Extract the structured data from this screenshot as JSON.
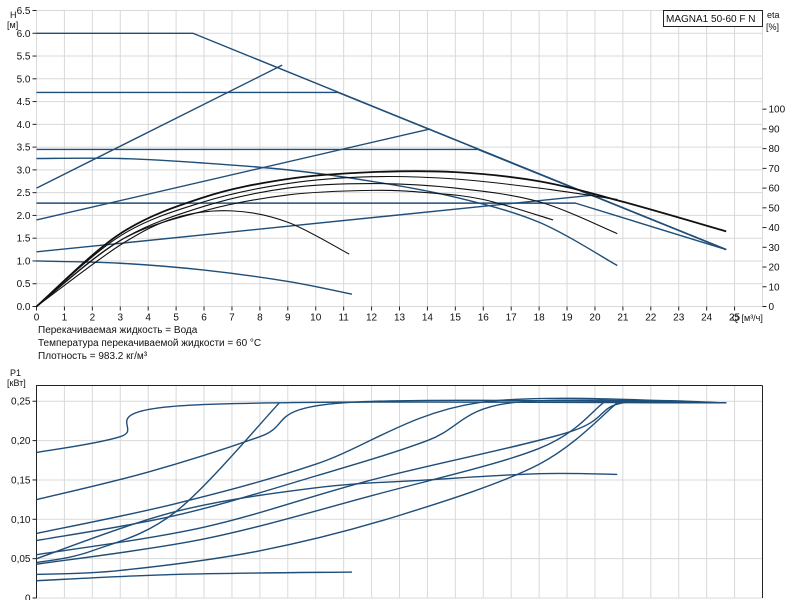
{
  "chart_data": [
    {
      "type": "line",
      "model_label": "MAGNA1 50-60 F N",
      "ylabel_left": "H",
      "yunit_left": "[м]",
      "ylabel_right": "eta",
      "yunit_right": "[%]",
      "xlabel": "Q [м³/ч]",
      "xlim": [
        0,
        26
      ],
      "ylim": [
        0,
        6.5
      ],
      "ylim_right": [
        0,
        100
      ],
      "x_ticks": [
        0,
        1,
        2,
        3,
        4,
        5,
        6,
        7,
        8,
        9,
        10,
        11,
        12,
        13,
        14,
        15,
        16,
        17,
        18,
        19,
        20,
        21,
        22,
        23,
        24,
        25
      ],
      "y_ticks": [
        "0.0",
        "0.5",
        "1.0",
        "1.5",
        "2.0",
        "2.5",
        "3.0",
        "3.5",
        "4.0",
        "4.5",
        "5.0",
        "5.5",
        "6.0",
        "6.5"
      ],
      "y_ticks_right": [
        "0",
        "10",
        "20",
        "30",
        "40",
        "50",
        "60",
        "70",
        "80",
        "90",
        "100"
      ],
      "grid": true,
      "info_lines": [
        "Перекачиваемая жидкость = Вода",
        "Температура перекачиваемой жидкости = 60 °C",
        "Плотность = 983.2 кг/м³"
      ],
      "series": [
        {
          "values": [
            [
              0,
              6.0
            ],
            [
              5.6,
              6.0
            ],
            [
              24.7,
              1.25
            ]
          ]
        },
        {
          "values": [
            [
              0,
              4.7
            ],
            [
              10.8,
              4.7
            ],
            [
              24.7,
              1.25
            ]
          ]
        },
        {
          "values": [
            [
              0,
              3.45
            ],
            [
              15.8,
              3.45
            ],
            [
              24.7,
              1.25
            ]
          ]
        },
        {
          "values": [
            [
              0,
              2.27
            ],
            [
              19.3,
              2.27
            ],
            [
              24.7,
              1.25
            ]
          ]
        },
        {
          "values": [
            [
              0,
              2.6
            ],
            [
              8.8,
              5.3
            ]
          ]
        },
        {
          "values": [
            [
              0,
              1.9
            ],
            [
              14.1,
              3.9
            ]
          ]
        },
        {
          "values": [
            [
              0,
              1.2
            ],
            [
              20.0,
              2.45
            ]
          ]
        },
        {
          "values": [
            [
              0,
              3.25
            ],
            [
              3,
              3.25
            ],
            [
              6,
              3.15
            ],
            [
              9,
              3.0
            ],
            [
              12,
              2.75
            ],
            [
              15,
              2.4
            ],
            [
              18,
              1.85
            ],
            [
              20.8,
              0.9
            ]
          ]
        },
        {
          "values": [
            [
              0,
              1.0
            ],
            [
              3,
              0.95
            ],
            [
              6,
              0.8
            ],
            [
              9,
              0.55
            ],
            [
              11.3,
              0.27
            ]
          ]
        },
        {
          "values": [
            [
              0,
              0
            ],
            [
              3,
              1.6
            ],
            [
              6,
              2.4
            ],
            [
              9,
              2.8
            ],
            [
              12,
              2.95
            ],
            [
              15,
              2.95
            ],
            [
              18,
              2.75
            ],
            [
              21,
              2.3
            ],
            [
              24.7,
              1.65
            ]
          ]
        },
        {
          "values": [
            [
              0,
              0
            ],
            [
              3,
              1.55
            ],
            [
              6,
              2.3
            ],
            [
              9,
              2.7
            ],
            [
              12,
              2.85
            ],
            [
              15,
              2.8
            ],
            [
              18,
              2.6
            ],
            [
              20.8,
              2.35
            ]
          ]
        },
        {
          "values": [
            [
              0,
              0
            ],
            [
              3,
              1.45
            ],
            [
              6,
              2.2
            ],
            [
              9,
              2.6
            ],
            [
              12,
              2.7
            ],
            [
              15,
              2.6
            ],
            [
              18,
              2.3
            ],
            [
              20.8,
              1.6
            ]
          ]
        },
        {
          "values": [
            [
              0,
              0
            ],
            [
              3,
              1.45
            ],
            [
              6,
              2.1
            ],
            [
              9,
              2.45
            ],
            [
              12,
              2.55
            ],
            [
              14,
              2.5
            ],
            [
              16,
              2.35
            ],
            [
              18.5,
              1.9
            ]
          ]
        },
        {
          "values": [
            [
              0,
              0
            ],
            [
              3,
              1.35
            ],
            [
              5,
              1.95
            ],
            [
              7,
              2.1
            ],
            [
              9,
              1.85
            ],
            [
              11.2,
              1.15
            ]
          ]
        }
      ]
    },
    {
      "type": "line",
      "ylabel": "P1",
      "yunit": "[кВт]",
      "xlim": [
        0,
        26
      ],
      "ylim": [
        0,
        0.27
      ],
      "y_ticks": [
        "0",
        "0,05",
        "0,10",
        "0,15",
        "0,20",
        "0,25"
      ],
      "grid": true,
      "series": [
        {
          "values": [
            [
              0,
              0.185
            ],
            [
              3,
              0.205
            ],
            [
              5.5,
              0.245
            ],
            [
              24.7,
              0.248
            ]
          ]
        },
        {
          "values": [
            [
              0,
              0.125
            ],
            [
              4,
              0.16
            ],
            [
              8,
              0.205
            ],
            [
              11,
              0.248
            ],
            [
              24.7,
              0.248
            ]
          ]
        },
        {
          "values": [
            [
              0,
              0.082
            ],
            [
              5,
              0.12
            ],
            [
              10,
              0.17
            ],
            [
              15.8,
              0.248
            ],
            [
              24.7,
              0.248
            ]
          ]
        },
        {
          "values": [
            [
              0,
              0.073
            ],
            [
              5,
              0.105
            ],
            [
              10,
              0.155
            ],
            [
              14,
              0.2
            ],
            [
              17,
              0.248
            ],
            [
              24.7,
              0.248
            ]
          ]
        },
        {
          "values": [
            [
              0,
              0.055
            ],
            [
              6,
              0.09
            ],
            [
              12,
              0.15
            ],
            [
              19,
              0.21
            ],
            [
              21,
              0.248
            ],
            [
              24.7,
              0.248
            ]
          ]
        },
        {
          "values": [
            [
              0,
              0.043
            ],
            [
              6,
              0.075
            ],
            [
              12,
              0.13
            ],
            [
              18,
              0.19
            ],
            [
              20.3,
              0.248
            ]
          ]
        },
        {
          "values": [
            [
              0,
              0.045
            ],
            [
              2,
              0.06
            ],
            [
              5,
              0.11
            ],
            [
              8.7,
              0.248
            ]
          ]
        },
        {
          "values": [
            [
              0,
              0.05
            ],
            [
              5,
              0.11
            ],
            [
              10,
              0.14
            ],
            [
              14,
              0.15
            ],
            [
              18,
              0.158
            ],
            [
              20.8,
              0.157
            ]
          ]
        },
        {
          "values": [
            [
              0,
              0.03
            ],
            [
              3,
              0.035
            ],
            [
              8,
              0.06
            ],
            [
              13,
              0.105
            ],
            [
              18,
              0.17
            ],
            [
              20.8,
              0.248
            ]
          ]
        },
        {
          "values": [
            [
              0,
              0.022
            ],
            [
              5,
              0.03
            ],
            [
              11.3,
              0.033
            ]
          ]
        }
      ]
    }
  ]
}
